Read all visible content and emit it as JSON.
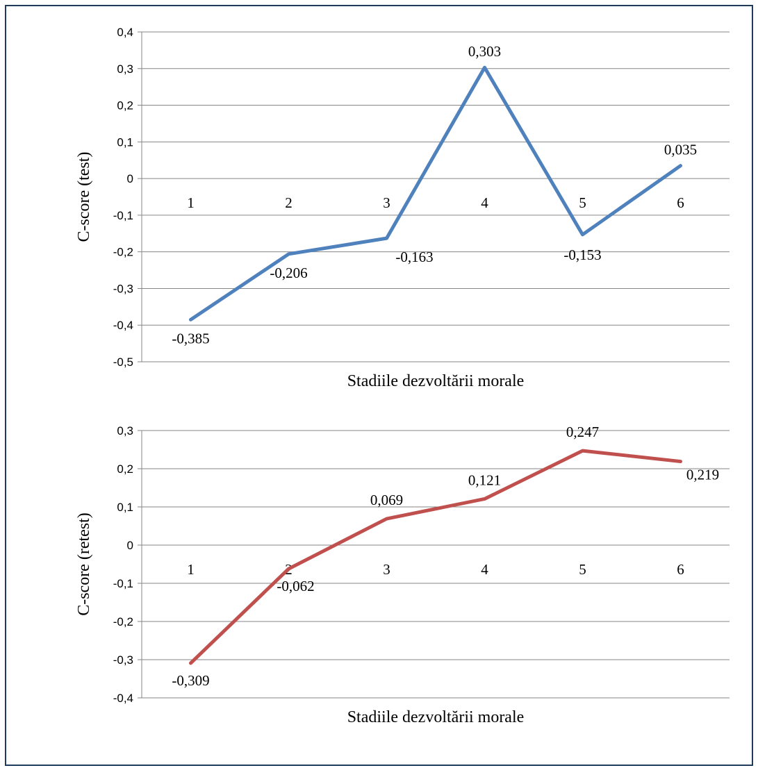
{
  "colors": {
    "border": "#1f3b5c",
    "grid": "#868686",
    "test_line": "#4f81bd",
    "retest_line": "#c0504d"
  },
  "chart_data": [
    {
      "type": "line",
      "categories": [
        "1",
        "2",
        "3",
        "4",
        "5",
        "6"
      ],
      "series": [
        {
          "values": [
            -0.385,
            -0.206,
            -0.163,
            0.303,
            -0.153,
            0.035
          ],
          "labels": [
            "-0,385",
            "-0,206",
            "-0,163",
            "0,303",
            "-0,153",
            "0,035"
          ],
          "color": "#4f81bd"
        }
      ],
      "xlabel": "Stadiile dezvoltării morale",
      "ylabel": "C-score (test)",
      "ylim": [
        -0.5,
        0.4
      ],
      "yticks": [
        "0,4",
        "0,3",
        "0,2",
        "0,1",
        "0",
        "-0,1",
        "-0,2",
        "-0,3",
        "-0,4",
        "-0,5"
      ],
      "grid": true,
      "category_labels_position": "at zero line"
    },
    {
      "type": "line",
      "categories": [
        "1",
        "2",
        "3",
        "4",
        "5",
        "6"
      ],
      "series": [
        {
          "values": [
            -0.309,
            -0.062,
            0.069,
            0.121,
            0.247,
            0.219
          ],
          "labels": [
            "-0,309",
            "-0,062",
            "0,069",
            "0,121",
            "0,247",
            "0,219"
          ],
          "color": "#c0504d"
        }
      ],
      "xlabel": "Stadiile dezvoltării morale",
      "ylabel": "C-score (retest)",
      "ylim": [
        -0.4,
        0.3
      ],
      "yticks": [
        "0,3",
        "0,2",
        "0,1",
        "0",
        "-0,1",
        "-0,2",
        "-0,3",
        "-0,4"
      ],
      "grid": true,
      "category_labels_position": "at zero line"
    }
  ]
}
